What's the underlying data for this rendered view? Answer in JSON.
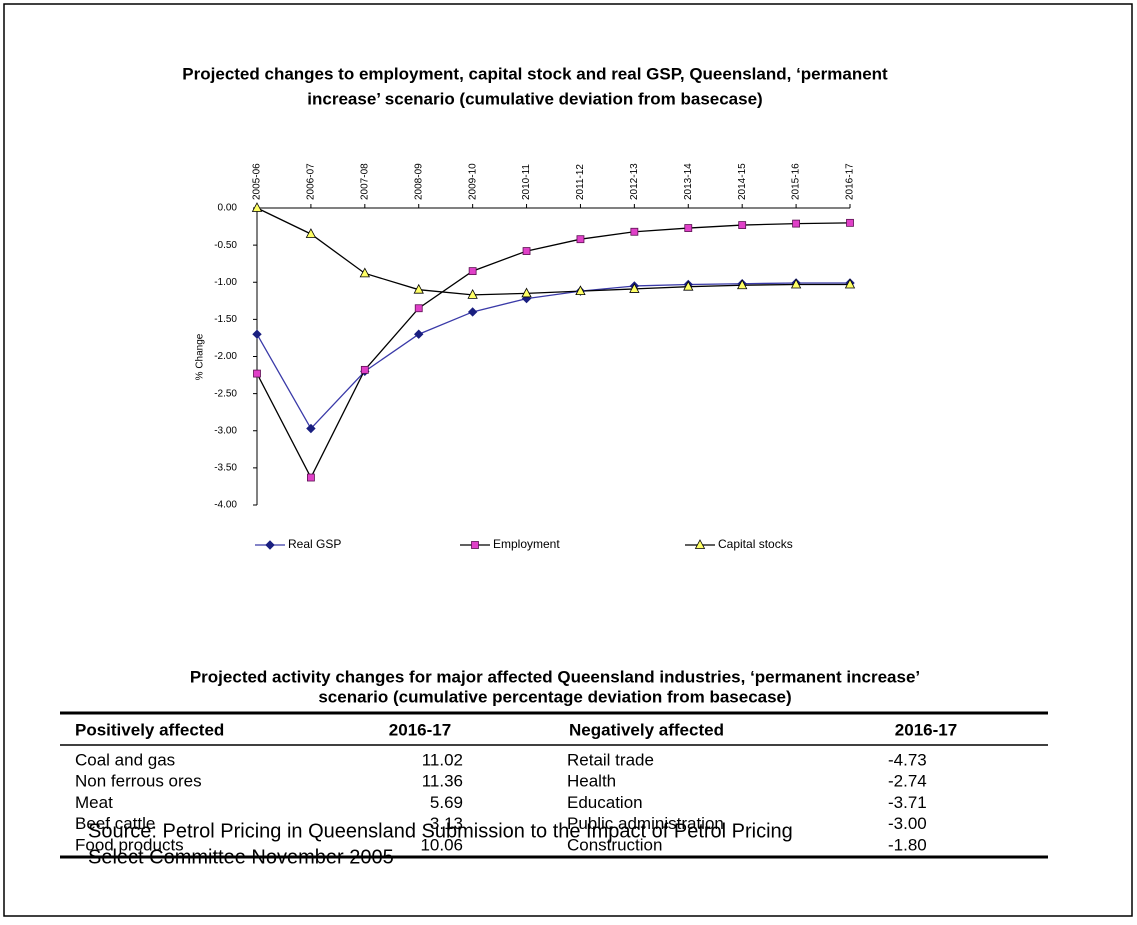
{
  "chart_data": {
    "type": "line",
    "title": [
      "Projected changes to employment, capital stock and real GSP, Queensland, ‘permanent",
      "increase’ scenario (cumulative deviation from basecase)"
    ],
    "y_label": "% Change",
    "categories": [
      "2005-06",
      "2006-07",
      "2007-08",
      "2008-09",
      "2009-10",
      "2010-11",
      "2011-12",
      "2012-13",
      "2013-14",
      "2014-15",
      "2015-16",
      "2016-17"
    ],
    "series": [
      {
        "name": "Real GSP",
        "color": "#1a1f80",
        "line_color": "#3a3aa8",
        "marker": "diamond",
        "values": [
          -1.7,
          -2.97,
          -2.2,
          -1.7,
          -1.4,
          -1.22,
          -1.12,
          -1.05,
          -1.03,
          -1.02,
          -1.01,
          -1.01
        ]
      },
      {
        "name": "Employment",
        "color": "#e040c8",
        "line_color": "#000000",
        "marker": "square",
        "values": [
          -2.23,
          -3.63,
          -2.18,
          -1.35,
          -0.85,
          -0.58,
          -0.42,
          -0.32,
          -0.27,
          -0.23,
          -0.21,
          -0.2
        ]
      },
      {
        "name": "Capital stocks",
        "color": "#ffff66",
        "line_color": "#000000",
        "marker": "triangle",
        "values": [
          0.0,
          -0.35,
          -0.88,
          -1.1,
          -1.17,
          -1.15,
          -1.12,
          -1.09,
          -1.06,
          -1.04,
          -1.03,
          -1.03
        ]
      }
    ],
    "ylim": [
      -4,
      0
    ],
    "yticks": [
      {
        "value": 0,
        "label": "0.00"
      },
      {
        "value": -0.5,
        "label": "-0.50"
      },
      {
        "value": -1,
        "label": "-1.00"
      },
      {
        "value": -1.5,
        "label": "-1.50"
      },
      {
        "value": -2,
        "label": "-2.00"
      },
      {
        "value": -2.5,
        "label": "-2.50"
      },
      {
        "value": -3,
        "label": "-3.00"
      },
      {
        "value": -3.5,
        "label": "-3.50"
      },
      {
        "value": -4,
        "label": "-4.00"
      }
    ],
    "legend": "bottom"
  },
  "table": {
    "title": [
      "Projected activity changes for major affected Queensland industries, ‘permanent increase’",
      "scenario (cumulative percentage deviation from basecase)"
    ],
    "header": [
      "Positively affected",
      "2016-17",
      "Negatively affected",
      "2016-17"
    ],
    "rows": [
      [
        "Coal and gas",
        "11.02",
        "Retail trade",
        "-4.73"
      ],
      [
        "Non ferrous ores",
        "11.36",
        "Health",
        "-2.74"
      ],
      [
        "Meat",
        "5.69",
        "Education",
        "-3.71"
      ],
      [
        "Beef cattle",
        "3.13",
        "Public administration",
        "-3.00"
      ],
      [
        "Food products",
        "10.06",
        "Construction",
        "-1.80"
      ]
    ]
  },
  "source": [
    "Source: Petrol Pricing in Queensland Submission to the Impact of Petrol Pricing",
    "Select Committee November 2005"
  ]
}
